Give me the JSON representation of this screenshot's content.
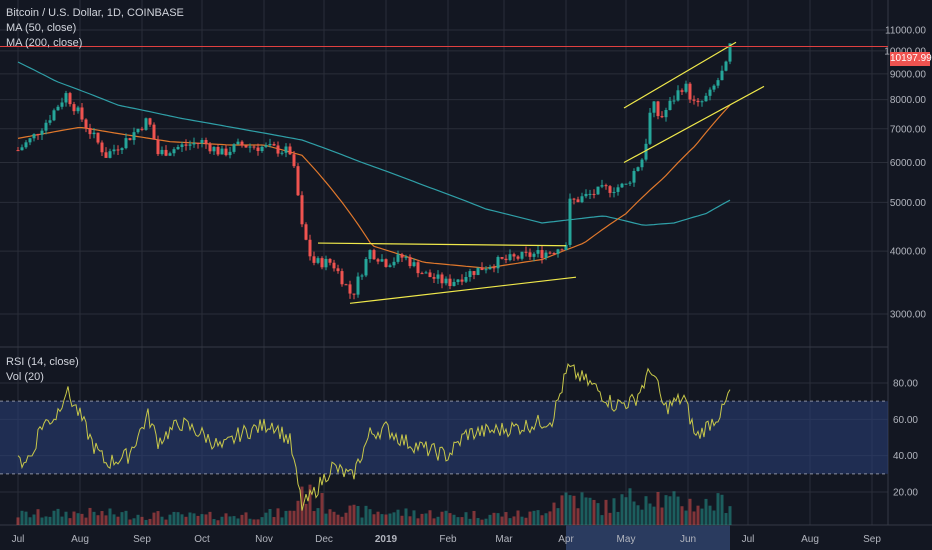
{
  "header": {
    "symbol_line": "Bitcoin / U.S. Dollar, 1D, COINBASE",
    "ma50_label": "MA (50, close)",
    "ma200_label": "MA (200, close)",
    "rsi_label": "RSI (14, close)",
    "vol_label": "Vol (20)"
  },
  "last_price_tag": "10197.99",
  "colors": {
    "background": "#131722",
    "grid": "#2a2e39",
    "candle_up": "#26a69a",
    "candle_down": "#ef5350",
    "ma50": "#e0782c",
    "ma200": "#2fa0a8",
    "trendline": "#f0e94b",
    "price_line": "#e04040",
    "rsi": "#c8c84a",
    "rsi_band": "#2a3f7a",
    "axis_highlight": "#2a3b5f"
  },
  "chart_data": [
    {
      "type": "candlestick",
      "title": "Bitcoin / U.S. Dollar, 1D, COINBASE",
      "x_tick_labels": [
        "Jul",
        "Aug",
        "Sep",
        "Oct",
        "Nov",
        "Dec",
        "2019",
        "Feb",
        "Mar",
        "Apr",
        "May",
        "Jun",
        "Jul",
        "Aug",
        "Sep"
      ],
      "y_tick_labels": [
        "3000.00",
        "4000.00",
        "5000.00",
        "6000.00",
        "7000.00",
        "8000.00",
        "9000.00",
        "10000.00",
        "11000.00"
      ],
      "y_ticks": [
        3000,
        4000,
        5000,
        6000,
        7000,
        8000,
        9000,
        10000,
        11000
      ],
      "scale": "log",
      "price_anchors": [
        [
          "2018-07-01",
          6350
        ],
        [
          "2018-07-08",
          6700
        ],
        [
          "2018-07-16",
          7300
        ],
        [
          "2018-07-25",
          8200
        ],
        [
          "2018-08-05",
          7000
        ],
        [
          "2018-08-14",
          6200
        ],
        [
          "2018-08-25",
          6700
        ],
        [
          "2018-09-04",
          7300
        ],
        [
          "2018-09-09",
          6250
        ],
        [
          "2018-09-20",
          6450
        ],
        [
          "2018-10-01",
          6600
        ],
        [
          "2018-10-11",
          6250
        ],
        [
          "2018-10-20",
          6500
        ],
        [
          "2018-11-05",
          6400
        ],
        [
          "2018-11-14",
          6300
        ],
        [
          "2018-11-17",
          5500
        ],
        [
          "2018-11-20",
          4450
        ],
        [
          "2018-11-25",
          3800
        ],
        [
          "2018-12-05",
          3800
        ],
        [
          "2018-12-15",
          3250
        ],
        [
          "2018-12-24",
          4000
        ],
        [
          "2019-01-01",
          3800
        ],
        [
          "2019-01-10",
          3900
        ],
        [
          "2019-01-20",
          3600
        ],
        [
          "2019-02-01",
          3450
        ],
        [
          "2019-02-10",
          3600
        ],
        [
          "2019-02-25",
          3800
        ],
        [
          "2019-03-10",
          3900
        ],
        [
          "2019-03-25",
          4000
        ],
        [
          "2019-04-01",
          4150
        ],
        [
          "2019-04-03",
          5000
        ],
        [
          "2019-04-20",
          5300
        ],
        [
          "2019-05-01",
          5400
        ],
        [
          "2019-05-10",
          6200
        ],
        [
          "2019-05-14",
          7900
        ],
        [
          "2019-05-18",
          7300
        ],
        [
          "2019-05-30",
          8600
        ],
        [
          "2019-06-05",
          7700
        ],
        [
          "2019-06-12",
          8200
        ],
        [
          "2019-06-20",
          9300
        ],
        [
          "2019-06-22",
          10198
        ]
      ],
      "ma50_anchors": [
        [
          "2018-07-01",
          6700
        ],
        [
          "2018-08-01",
          7050
        ],
        [
          "2018-08-20",
          6850
        ],
        [
          "2018-09-15",
          6600
        ],
        [
          "2018-10-15",
          6500
        ],
        [
          "2018-11-01",
          6500
        ],
        [
          "2018-11-20",
          6200
        ],
        [
          "2018-12-10",
          5000
        ],
        [
          "2018-12-25",
          4100
        ],
        [
          "2019-01-20",
          3800
        ],
        [
          "2019-02-20",
          3700
        ],
        [
          "2019-03-20",
          3850
        ],
        [
          "2019-04-10",
          4150
        ],
        [
          "2019-05-01",
          4750
        ],
        [
          "2019-05-20",
          5600
        ],
        [
          "2019-06-05",
          6500
        ],
        [
          "2019-06-22",
          7800
        ]
      ],
      "ma200_anchors": [
        [
          "2018-07-01",
          9500
        ],
        [
          "2018-07-20",
          8700
        ],
        [
          "2018-08-20",
          7800
        ],
        [
          "2018-09-20",
          7350
        ],
        [
          "2018-10-20",
          7000
        ],
        [
          "2018-11-20",
          6650
        ],
        [
          "2018-12-20",
          6000
        ],
        [
          "2019-01-20",
          5400
        ],
        [
          "2019-02-20",
          4850
        ],
        [
          "2019-03-20",
          4550
        ],
        [
          "2019-04-20",
          4700
        ],
        [
          "2019-05-10",
          4500
        ],
        [
          "2019-05-25",
          4550
        ],
        [
          "2019-06-10",
          4750
        ],
        [
          "2019-06-22",
          5050
        ]
      ],
      "trendlines": [
        {
          "name": "triangle-upper",
          "from": [
            "2018-11-28",
            4150
          ],
          "to": [
            "2019-04-01",
            4100
          ]
        },
        {
          "name": "triangle-lower",
          "from": [
            "2018-12-14",
            3150
          ],
          "to": [
            "2019-04-06",
            3550
          ]
        },
        {
          "name": "channel-upper",
          "from": [
            "2019-04-30",
            7700
          ],
          "to": [
            "2019-06-25",
            10400
          ]
        },
        {
          "name": "channel-lower",
          "from": [
            "2019-04-30",
            6000
          ],
          "to": [
            "2019-07-09",
            8500
          ]
        }
      ],
      "last_price": 10197.99
    },
    {
      "type": "line",
      "title": "RSI (14, close)",
      "y_tick_labels": [
        "20.00",
        "40.00",
        "60.00",
        "80.00"
      ],
      "y_ticks": [
        20,
        40,
        60,
        80
      ],
      "bands": [
        30,
        70
      ],
      "rsi_anchors": [
        [
          "2018-07-01",
          36
        ],
        [
          "2018-07-08",
          40
        ],
        [
          "2018-07-12",
          56
        ],
        [
          "2018-07-20",
          62
        ],
        [
          "2018-07-25",
          76
        ],
        [
          "2018-08-01",
          62
        ],
        [
          "2018-08-08",
          45
        ],
        [
          "2018-08-14",
          36
        ],
        [
          "2018-08-25",
          40
        ],
        [
          "2018-09-04",
          62
        ],
        [
          "2018-09-09",
          48
        ],
        [
          "2018-09-20",
          58
        ],
        [
          "2018-10-01",
          52
        ],
        [
          "2018-10-11",
          44
        ],
        [
          "2018-10-20",
          52
        ],
        [
          "2018-11-05",
          58
        ],
        [
          "2018-11-14",
          48
        ],
        [
          "2018-11-20",
          12
        ],
        [
          "2018-11-25",
          18
        ],
        [
          "2018-12-05",
          34
        ],
        [
          "2018-12-15",
          28
        ],
        [
          "2018-12-24",
          52
        ],
        [
          "2019-01-01",
          55
        ],
        [
          "2019-01-10",
          48
        ],
        [
          "2019-01-20",
          44
        ],
        [
          "2019-02-01",
          40
        ],
        [
          "2019-02-10",
          52
        ],
        [
          "2019-02-25",
          54
        ],
        [
          "2019-03-10",
          56
        ],
        [
          "2019-03-25",
          60
        ],
        [
          "2019-04-02",
          88
        ],
        [
          "2019-04-15",
          78
        ],
        [
          "2019-04-25",
          68
        ],
        [
          "2019-05-05",
          70
        ],
        [
          "2019-05-14",
          88
        ],
        [
          "2019-05-20",
          66
        ],
        [
          "2019-05-30",
          72
        ],
        [
          "2019-06-05",
          50
        ],
        [
          "2019-06-12",
          58
        ],
        [
          "2019-06-18",
          64
        ],
        [
          "2019-06-22",
          75
        ]
      ],
      "volume_anchors": [
        [
          "2018-07-01",
          6
        ],
        [
          "2018-08-01",
          7
        ],
        [
          "2018-09-01",
          6
        ],
        [
          "2018-10-01",
          5
        ],
        [
          "2018-11-15",
          7
        ],
        [
          "2018-11-20",
          22
        ],
        [
          "2018-11-26",
          14
        ],
        [
          "2018-12-15",
          8
        ],
        [
          "2019-01-15",
          7
        ],
        [
          "2019-02-15",
          6
        ],
        [
          "2019-03-15",
          6
        ],
        [
          "2019-04-02",
          18
        ],
        [
          "2019-04-20",
          10
        ],
        [
          "2019-05-14",
          20
        ],
        [
          "2019-05-20",
          14
        ],
        [
          "2019-06-10",
          12
        ],
        [
          "2019-06-22",
          14
        ]
      ]
    }
  ]
}
